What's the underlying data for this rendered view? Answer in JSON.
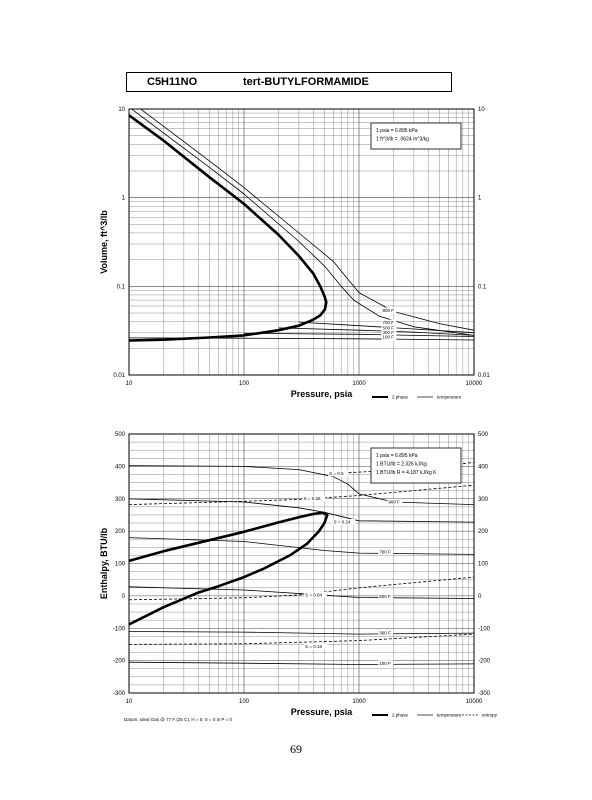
{
  "header": {
    "formula": "C5H11NO",
    "name": "tert-BUTYLFORMAMIDE"
  },
  "page_number": "69",
  "chart_data": [
    {
      "type": "line",
      "id": "volume",
      "xlabel": "Pressure,  psia",
      "ylabel": "Volume, ft^3/lb",
      "xscale": "log",
      "yscale": "log",
      "xlim": [
        10,
        10000
      ],
      "ylim": [
        0.01,
        10
      ],
      "xticks": [
        {
          "v": 10,
          "t": "10"
        },
        {
          "v": 100,
          "t": "100"
        },
        {
          "v": 1000,
          "t": "1000"
        },
        {
          "v": 10000,
          "t": "10000"
        }
      ],
      "yticks": [
        {
          "v": 0.01,
          "t": "0.01"
        },
        {
          "v": 0.1,
          "t": "0.1"
        },
        {
          "v": 1,
          "t": "1"
        },
        {
          "v": 10,
          "t": "10"
        }
      ],
      "grid": true,
      "info_box": [
        "1 psia  =  6.895 kPa",
        "1 ft^3/lb  =  .0624 m^3/kg"
      ],
      "legend": [
        {
          "label": "2 phase",
          "style": "heavy"
        },
        {
          "label": "temperature",
          "style": "thin"
        }
      ],
      "series": [
        {
          "style": "heavy",
          "points": [
            [
              10,
              8.5
            ],
            [
              20,
              4.4
            ],
            [
              50,
              1.7
            ],
            [
              100,
              0.85
            ],
            [
              200,
              0.38
            ],
            [
              300,
              0.22
            ],
            [
              400,
              0.14
            ],
            [
              460,
              0.1
            ],
            [
              500,
              0.078
            ],
            [
              520,
              0.066
            ],
            [
              505,
              0.055
            ],
            [
              460,
              0.047
            ],
            [
              400,
              0.042
            ],
            [
              300,
              0.036
            ],
            [
              200,
              0.032
            ],
            [
              100,
              0.028
            ],
            [
              50,
              0.0265
            ],
            [
              20,
              0.025
            ],
            [
              10,
              0.0245
            ]
          ]
        },
        {
          "style": "thin",
          "points": [
            [
              10,
              10.5
            ],
            [
              50,
              2.2
            ],
            [
              100,
              1.1
            ],
            [
              300,
              0.32
            ],
            [
              500,
              0.17
            ],
            [
              700,
              0.1
            ],
            [
              900,
              0.07
            ],
            [
              1500,
              0.046
            ],
            [
              3000,
              0.035
            ],
            [
              10000,
              0.028
            ]
          ]
        },
        {
          "style": "thin",
          "points": [
            [
              12,
              10.5
            ],
            [
              50,
              2.6
            ],
            [
              100,
              1.3
            ],
            [
              300,
              0.4
            ],
            [
              600,
              0.19
            ],
            [
              800,
              0.12
            ],
            [
              1000,
              0.085
            ],
            [
              2000,
              0.052
            ],
            [
              5000,
              0.038
            ],
            [
              10000,
              0.032
            ]
          ]
        },
        {
          "style": "thin",
          "points": [
            [
              300,
              0.0395
            ],
            [
              1000,
              0.036
            ],
            [
              3000,
              0.033
            ],
            [
              10000,
              0.03
            ]
          ]
        },
        {
          "style": "thin",
          "points": [
            [
              200,
              0.034
            ],
            [
              1000,
              0.032
            ],
            [
              3000,
              0.0305
            ],
            [
              10000,
              0.028
            ]
          ]
        },
        {
          "style": "thin",
          "points": [
            [
              100,
              0.0295
            ],
            [
              1000,
              0.0288
            ],
            [
              10000,
              0.0272
            ]
          ]
        },
        {
          "style": "thin",
          "points": [
            [
              10,
              0.0262
            ],
            [
              100,
              0.026
            ],
            [
              1000,
              0.0256
            ],
            [
              10000,
              0.0248
            ]
          ]
        }
      ],
      "labels": [
        {
          "text": "800 F",
          "x": 1600,
          "y": 0.052
        },
        {
          "text": "700 F",
          "x": 1600,
          "y": 0.038
        },
        {
          "text": "500 F",
          "x": 1600,
          "y": 0.033
        },
        {
          "text": "300 F",
          "x": 1600,
          "y": 0.0295
        },
        {
          "text": "100 F",
          "x": 1600,
          "y": 0.026
        }
      ]
    },
    {
      "type": "line",
      "id": "enthalpy",
      "xlabel": "Pressure,  psia",
      "ylabel": "Enthalpy, BTU/lb",
      "xscale": "log",
      "yscale": "linear",
      "xlim": [
        10,
        10000
      ],
      "ylim": [
        -300,
        500
      ],
      "xticks": [
        {
          "v": 10,
          "t": "10"
        },
        {
          "v": 100,
          "t": "100"
        },
        {
          "v": 1000,
          "t": "1000"
        },
        {
          "v": 10000,
          "t": "10000"
        }
      ],
      "yticks": [
        {
          "v": -300,
          "t": "-300"
        },
        {
          "v": -200,
          "t": "-200"
        },
        {
          "v": -100,
          "t": "-100"
        },
        {
          "v": 0,
          "t": "0"
        },
        {
          "v": 100,
          "t": "100"
        },
        {
          "v": 200,
          "t": "200"
        },
        {
          "v": 300,
          "t": "300"
        },
        {
          "v": 400,
          "t": "400"
        },
        {
          "v": 500,
          "t": "500"
        }
      ],
      "grid": true,
      "info_box": [
        "1 psia  =  6.895 kPa",
        "1 BTU/lb  =  2.326 kJ/kg",
        "1 BTU/lb R  =  4.187 kJ/kg K"
      ],
      "footnote": "Datum: Ideal Gas @ 77 F (25 C),  H = 0,  S = 0 in P = 0",
      "legend": [
        {
          "label": "2 phase",
          "style": "heavy"
        },
        {
          "label": "temperature",
          "style": "thin"
        },
        {
          "label": "entropy",
          "style": "dashed"
        }
      ],
      "series": [
        {
          "style": "heavy",
          "points": [
            [
              10,
              108
            ],
            [
              20,
              138
            ],
            [
              50,
              172
            ],
            [
              100,
              198
            ],
            [
              200,
              227
            ],
            [
              300,
              243
            ],
            [
              400,
              253
            ],
            [
              480,
              257
            ],
            [
              530,
              250
            ],
            [
              500,
              225
            ],
            [
              450,
              200
            ],
            [
              350,
              160
            ],
            [
              250,
              125
            ],
            [
              150,
              85
            ],
            [
              100,
              58
            ],
            [
              60,
              30
            ],
            [
              40,
              10
            ],
            [
              20,
              -35
            ],
            [
              10,
              -88
            ]
          ]
        },
        {
          "style": "thin",
          "points": [
            [
              10,
              402
            ],
            [
              100,
              400
            ],
            [
              300,
              390
            ],
            [
              600,
              368
            ],
            [
              800,
              345
            ],
            [
              1000,
              315
            ],
            [
              2000,
              290
            ],
            [
              10000,
              282
            ]
          ]
        },
        {
          "style": "thin",
          "points": [
            [
              10,
              300
            ],
            [
              100,
              290
            ],
            [
              300,
              272
            ],
            [
              500,
              258
            ],
            [
              1000,
              232
            ],
            [
              10000,
              228
            ]
          ]
        },
        {
          "style": "thin",
          "points": [
            [
              10,
              180
            ],
            [
              100,
              168
            ],
            [
              500,
              140
            ],
            [
              1000,
              132
            ],
            [
              10000,
              128
            ]
          ]
        },
        {
          "style": "thin",
          "points": [
            [
              10,
              28
            ],
            [
              100,
              18
            ],
            [
              500,
              2
            ],
            [
              1000,
              -5
            ],
            [
              10000,
              -8
            ]
          ]
        },
        {
          "style": "thin",
          "points": [
            [
              10,
              -110
            ],
            [
              100,
              -112
            ],
            [
              1000,
              -118
            ],
            [
              10000,
              -115
            ]
          ]
        },
        {
          "style": "thin",
          "points": [
            [
              10,
              -205
            ],
            [
              100,
              -208
            ],
            [
              1000,
              -212
            ],
            [
              10000,
              -210
            ]
          ]
        },
        {
          "style": "dashed",
          "points": [
            [
              600,
              378
            ],
            [
              2000,
              388
            ],
            [
              10000,
              412
            ]
          ]
        },
        {
          "style": "dashed",
          "points": [
            [
              10,
              282
            ],
            [
              100,
              292
            ],
            [
              300,
              298
            ],
            [
              1000,
              310
            ],
            [
              10000,
              342
            ]
          ]
        },
        {
          "style": "dashed",
          "points": [
            [
              10,
              -12
            ],
            [
              100,
              -6
            ],
            [
              300,
              3
            ],
            [
              1000,
              25
            ],
            [
              10000,
              58
            ]
          ]
        },
        {
          "style": "dashed",
          "points": [
            [
              10,
              -150
            ],
            [
              100,
              -148
            ],
            [
              1000,
              -138
            ],
            [
              10000,
              -118
            ]
          ]
        }
      ],
      "labels": [
        {
          "text": "S = 0.5",
          "x": 550,
          "y": 375
        },
        {
          "text": "900 F",
          "x": 1800,
          "y": 287
        },
        {
          "text": "S = 0.26",
          "x": 330,
          "y": 298
        },
        {
          "text": "S = 0.24",
          "x": 600,
          "y": 225
        },
        {
          "text": "700 F",
          "x": 1500,
          "y": 132
        },
        {
          "text": "S = 0.04",
          "x": 340,
          "y": 0
        },
        {
          "text": "500 F",
          "x": 1500,
          "y": -5
        },
        {
          "text": "300 F",
          "x": 1500,
          "y": -117
        },
        {
          "text": "S = 0.16",
          "x": 340,
          "y": -160
        },
        {
          "text": "100 F",
          "x": 1500,
          "y": -212
        }
      ]
    }
  ]
}
